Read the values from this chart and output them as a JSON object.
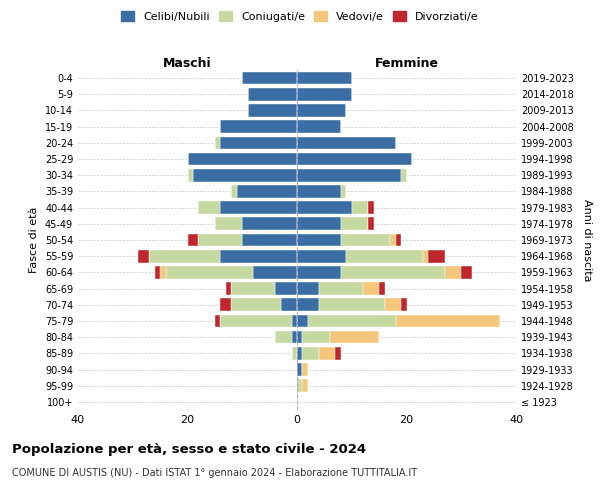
{
  "age_groups": [
    "100+",
    "95-99",
    "90-94",
    "85-89",
    "80-84",
    "75-79",
    "70-74",
    "65-69",
    "60-64",
    "55-59",
    "50-54",
    "45-49",
    "40-44",
    "35-39",
    "30-34",
    "25-29",
    "20-24",
    "15-19",
    "10-14",
    "5-9",
    "0-4"
  ],
  "birth_years": [
    "≤ 1923",
    "1924-1928",
    "1929-1933",
    "1934-1938",
    "1939-1943",
    "1944-1948",
    "1949-1953",
    "1954-1958",
    "1959-1963",
    "1964-1968",
    "1969-1973",
    "1974-1978",
    "1979-1983",
    "1984-1988",
    "1989-1993",
    "1994-1998",
    "1999-2003",
    "2004-2008",
    "2009-2013",
    "2014-2018",
    "2019-2023"
  ],
  "colors": {
    "celibi": "#3A6EA5",
    "coniugati": "#C5D9A0",
    "vedovi": "#F5C77A",
    "divorziati": "#C0272D"
  },
  "maschi": {
    "celibi": [
      0,
      0,
      0,
      0,
      1,
      1,
      3,
      4,
      8,
      14,
      10,
      10,
      14,
      11,
      19,
      20,
      14,
      14,
      9,
      9,
      10
    ],
    "coniugati": [
      0,
      0,
      0,
      1,
      3,
      13,
      9,
      8,
      16,
      13,
      8,
      5,
      4,
      1,
      1,
      0,
      1,
      0,
      0,
      0,
      0
    ],
    "vedovi": [
      0,
      0,
      0,
      0,
      0,
      0,
      0,
      0,
      1,
      0,
      0,
      0,
      0,
      0,
      0,
      0,
      0,
      0,
      0,
      0,
      0
    ],
    "divorziati": [
      0,
      0,
      0,
      0,
      0,
      1,
      2,
      1,
      1,
      2,
      2,
      0,
      0,
      0,
      0,
      0,
      0,
      0,
      0,
      0,
      0
    ]
  },
  "femmine": {
    "celibi": [
      0,
      0,
      1,
      1,
      1,
      2,
      4,
      4,
      8,
      9,
      8,
      8,
      10,
      8,
      19,
      21,
      18,
      8,
      9,
      10,
      10
    ],
    "coniugati": [
      0,
      1,
      0,
      3,
      5,
      16,
      12,
      8,
      19,
      14,
      9,
      5,
      3,
      1,
      1,
      0,
      0,
      0,
      0,
      0,
      0
    ],
    "vedovi": [
      0,
      1,
      1,
      3,
      9,
      19,
      3,
      3,
      3,
      1,
      1,
      0,
      0,
      0,
      0,
      0,
      0,
      0,
      0,
      0,
      0
    ],
    "divorziati": [
      0,
      0,
      0,
      1,
      0,
      0,
      1,
      1,
      2,
      3,
      1,
      1,
      1,
      0,
      0,
      0,
      0,
      0,
      0,
      0,
      0
    ]
  },
  "title": "Popolazione per età, sesso e stato civile - 2024",
  "subtitle": "COMUNE DI AUSTIS (NU) - Dati ISTAT 1° gennaio 2024 - Elaborazione TUTTITALIA.IT",
  "xlabel_left": "Maschi",
  "xlabel_right": "Femmine",
  "ylabel_left": "Fasce di età",
  "ylabel_right": "Anni di nascita",
  "xlim": 40,
  "legend_labels": [
    "Celibi/Nubili",
    "Coniugati/e",
    "Vedovi/e",
    "Divorziati/e"
  ],
  "background_color": "#ffffff"
}
